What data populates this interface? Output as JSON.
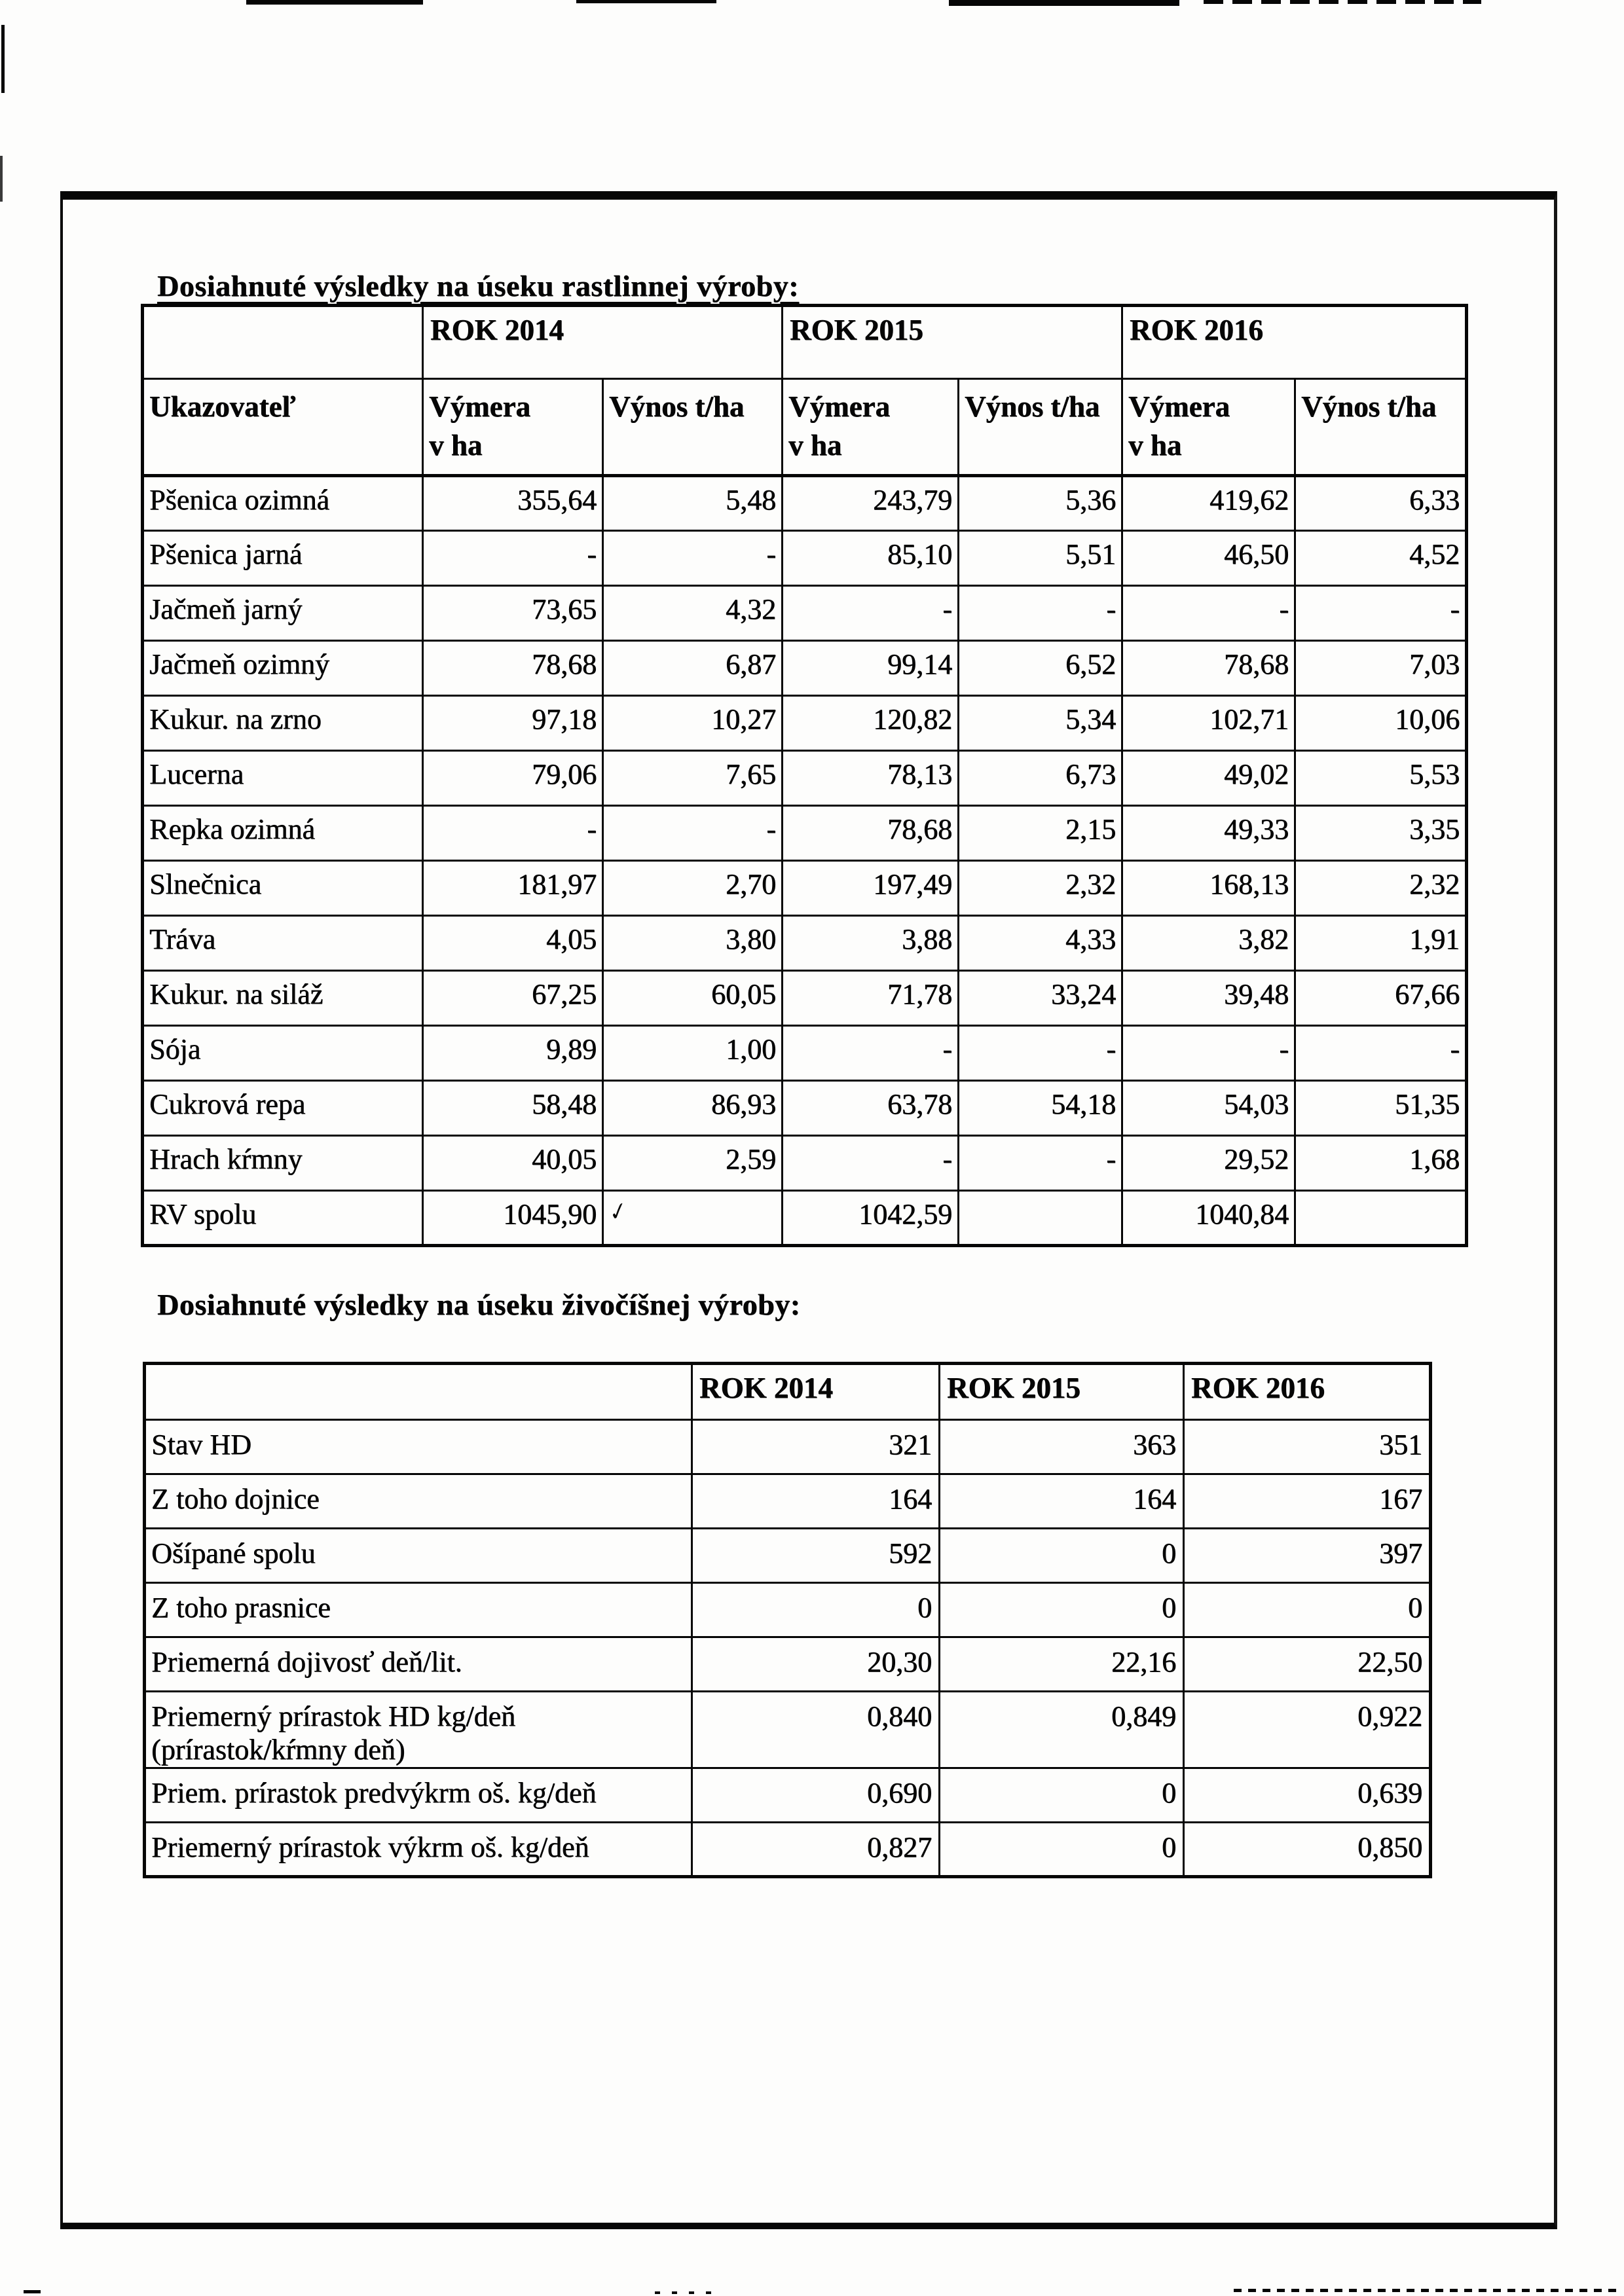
{
  "page": {
    "title1": "Dosiahnuté výsledky na úseku rastlinnej výroby:",
    "title2": "Dosiahnuté výsledky na úseku živočíšnej výroby:"
  },
  "table1": {
    "year_headers": [
      "ROK 2014",
      "ROK 2015",
      "ROK 2016"
    ],
    "first_col_header": "Ukazovateľ",
    "sub_headers": [
      "Výmera\nv ha",
      "Výnos t/ha",
      "Výmera\nv ha",
      "Výnos t/ha",
      "Výmera\nv ha",
      "Výnos t/ha"
    ],
    "rows": [
      {
        "label": "Pšenica ozimná",
        "values": [
          "355,64",
          "5,48",
          "243,79",
          "5,36",
          "419,62",
          "6,33"
        ]
      },
      {
        "label": "Pšenica jarná",
        "values": [
          "-",
          "-",
          "85,10",
          "5,51",
          "46,50",
          "4,52"
        ]
      },
      {
        "label": "Jačmeň jarný",
        "values": [
          "73,65",
          "4,32",
          "-",
          "-",
          "-",
          "-"
        ]
      },
      {
        "label": "Jačmeň ozimný",
        "values": [
          "78,68",
          "6,87",
          "99,14",
          "6,52",
          "78,68",
          "7,03"
        ]
      },
      {
        "label": "Kukur. na zrno",
        "values": [
          "97,18",
          "10,27",
          "120,82",
          "5,34",
          "102,71",
          "10,06"
        ]
      },
      {
        "label": "Lucerna",
        "values": [
          "79,06",
          "7,65",
          "78,13",
          "6,73",
          "49,02",
          "5,53"
        ]
      },
      {
        "label": "Repka ozimná",
        "values": [
          "-",
          "-",
          "78,68",
          "2,15",
          "49,33",
          "3,35"
        ]
      },
      {
        "label": "Slnečnica",
        "values": [
          "181,97",
          "2,70",
          "197,49",
          "2,32",
          "168,13",
          "2,32"
        ]
      },
      {
        "label": "Tráva",
        "values": [
          "4,05",
          "3,80",
          "3,88",
          "4,33",
          "3,82",
          "1,91"
        ]
      },
      {
        "label": "Kukur. na siláž",
        "values": [
          "67,25",
          "60,05",
          "71,78",
          "33,24",
          "39,48",
          "67,66"
        ]
      },
      {
        "label": "Sója",
        "values": [
          "9,89",
          "1,00",
          "-",
          "-",
          "-",
          "-"
        ]
      },
      {
        "label": "Cukrová repa",
        "values": [
          "58,48",
          "86,93",
          "63,78",
          "54,18",
          "54,03",
          "51,35"
        ]
      },
      {
        "label": "Hrach kŕmny",
        "values": [
          "40,05",
          "2,59",
          "-",
          "-",
          "29,52",
          "1,68"
        ]
      },
      {
        "label": "RV spolu",
        "values": [
          "1045,90",
          "",
          "1042,59",
          "",
          "1040,84",
          ""
        ]
      }
    ]
  },
  "table2": {
    "year_headers": [
      "ROK 2014",
      "ROK 2015",
      "ROK 2016"
    ],
    "rows": [
      {
        "label": "Stav HD",
        "values": [
          "321",
          "363",
          "351"
        ]
      },
      {
        "label": "Z toho dojnice",
        "values": [
          "164",
          "164",
          "167"
        ]
      },
      {
        "label": "Ošípané spolu",
        "values": [
          "592",
          "0",
          "397"
        ]
      },
      {
        "label": "Z toho prasnice",
        "values": [
          "0",
          "0",
          "0"
        ]
      },
      {
        "label": "Priemerná dojivosť deň/lit.",
        "values": [
          "20,30",
          "22,16",
          "22,50"
        ]
      },
      {
        "label": "Priemerný prírastok HD kg/deň",
        "label2": "(prírastok/kŕmny deň)",
        "values": [
          "0,840",
          "0,849",
          "0,922"
        ]
      },
      {
        "label": "Priem. prírastok predvýkrm oš. kg/deň",
        "values": [
          "0,690",
          "0",
          "0,639"
        ]
      },
      {
        "label": "Priemerný prírastok výkrm oš. kg/deň",
        "values": [
          "0,827",
          "0",
          "0,850"
        ]
      }
    ]
  },
  "artifacts": {
    "handwritten_mark": "✓"
  }
}
